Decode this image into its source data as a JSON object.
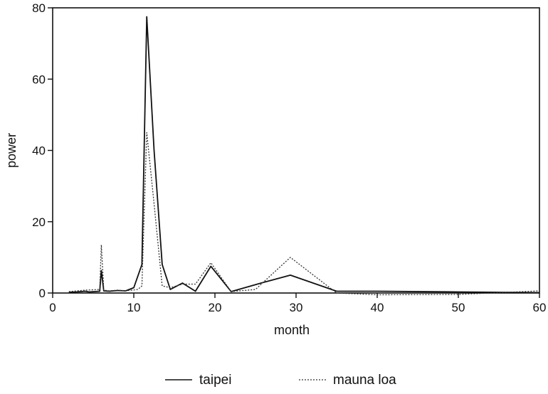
{
  "chart_data": {
    "type": "line",
    "title": "",
    "xlabel": "month",
    "ylabel": "power",
    "xlim": [
      0,
      60
    ],
    "ylim": [
      0,
      80
    ],
    "xticks": [
      0,
      10,
      20,
      30,
      40,
      50,
      60
    ],
    "yticks": [
      0,
      20,
      40,
      60,
      80
    ],
    "grid": false,
    "legend": "bottom",
    "series": [
      {
        "name": "taipei",
        "style": "solid",
        "color": "#111111",
        "x": [
          2.0,
          3.0,
          4.0,
          4.5,
          5.8,
          6.0,
          6.3,
          7.0,
          8.0,
          9.0,
          10.0,
          11.0,
          11.6,
          12.5,
          13.5,
          14.5,
          16.0,
          17.6,
          19.5,
          22.0,
          26.0,
          29.3,
          35.0,
          40.0,
          50.0,
          60.0
        ],
        "y": [
          0.2,
          0.3,
          0.5,
          0.3,
          0.5,
          6.3,
          0.6,
          0.5,
          0.7,
          0.6,
          1.5,
          8.0,
          77.5,
          40.0,
          8.0,
          1.0,
          2.8,
          0.5,
          7.5,
          0.4,
          3.0,
          5.0,
          0.5,
          0.5,
          0.3,
          0.1
        ]
      },
      {
        "name": "mauna loa",
        "style": "dotted",
        "color": "#333333",
        "x": [
          2.0,
          3.0,
          4.0,
          5.8,
          6.0,
          6.3,
          7.0,
          8.0,
          9.0,
          10.5,
          11.0,
          11.6,
          12.5,
          13.5,
          14.5,
          16.0,
          17.6,
          19.5,
          22.0,
          25.0,
          29.3,
          35.0,
          40.0,
          50.0,
          60.0
        ],
        "y": [
          0.4,
          0.6,
          0.8,
          1.0,
          13.5,
          0.8,
          0.6,
          0.8,
          0.6,
          1.0,
          2.0,
          45.0,
          25.0,
          2.0,
          1.5,
          2.5,
          2.5,
          8.5,
          0.4,
          1.0,
          10.0,
          0.0,
          -0.5,
          -0.4,
          0.6
        ]
      }
    ]
  }
}
